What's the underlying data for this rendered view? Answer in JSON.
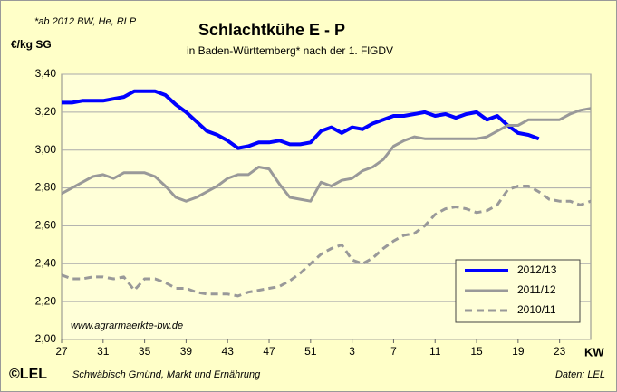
{
  "chart_data": {
    "type": "line",
    "title": "Schlachtkühe E - P",
    "subtitle": "in Baden-Württemberg* nach der 1. FlGDV",
    "note": "*ab 2012 BW, He, RLP",
    "y_label": "€/kg SG",
    "x_label": "KW",
    "watermark": "www.agrarmaerkte-bw.de",
    "logo": "©LEL",
    "footer_left": "Schwäbisch Gmünd, Markt und Ernährung",
    "footer_right": "Daten: LEL",
    "categories": [
      "27",
      null,
      null,
      null,
      "31",
      null,
      null,
      null,
      "35",
      null,
      null,
      null,
      "39",
      null,
      null,
      null,
      "43",
      null,
      null,
      null,
      "47",
      null,
      null,
      null,
      "51",
      null,
      null,
      null,
      "3",
      null,
      null,
      null,
      "7",
      null,
      null,
      null,
      "11",
      null,
      null,
      null,
      "15",
      null,
      null,
      null,
      "19",
      null,
      null,
      null,
      "23",
      null,
      null,
      null
    ],
    "ylim": [
      2.0,
      3.4
    ],
    "yticks": [
      {
        "value": 2.0,
        "label": "2,00"
      },
      {
        "value": 2.2,
        "label": "2,20"
      },
      {
        "value": 2.4,
        "label": "2,40"
      },
      {
        "value": 2.6,
        "label": "2,60"
      },
      {
        "value": 2.8,
        "label": "2,80"
      },
      {
        "value": 3.0,
        "label": "3,00"
      },
      {
        "value": 3.2,
        "label": "3,20"
      },
      {
        "value": 3.4,
        "label": "3,40"
      }
    ],
    "grid": true,
    "legend": "lower right",
    "series": [
      {
        "name": "2012/13",
        "color": "#0000ff",
        "width": 4,
        "dashed": false,
        "values": [
          3.25,
          3.25,
          3.26,
          3.26,
          3.26,
          3.27,
          3.28,
          3.31,
          3.31,
          3.31,
          3.29,
          3.24,
          3.2,
          3.15,
          3.1,
          3.08,
          3.05,
          3.01,
          3.02,
          3.04,
          3.04,
          3.05,
          3.03,
          3.03,
          3.04,
          3.1,
          3.12,
          3.09,
          3.12,
          3.11,
          3.14,
          3.16,
          3.18,
          3.18,
          3.19,
          3.2,
          3.18,
          3.19,
          3.17,
          3.19,
          3.2,
          3.16,
          3.18,
          3.13,
          3.09,
          3.08,
          3.06,
          null,
          null,
          null,
          null,
          null
        ]
      },
      {
        "name": "2011/12",
        "color": "#999999",
        "width": 3,
        "dashed": false,
        "values": [
          2.77,
          2.8,
          2.83,
          2.86,
          2.87,
          2.85,
          2.88,
          2.88,
          2.88,
          2.86,
          2.81,
          2.75,
          2.73,
          2.75,
          2.78,
          2.81,
          2.85,
          2.87,
          2.87,
          2.91,
          2.9,
          2.82,
          2.75,
          2.74,
          2.73,
          2.83,
          2.81,
          2.84,
          2.85,
          2.89,
          2.91,
          2.95,
          3.02,
          3.05,
          3.07,
          3.06,
          3.06,
          3.06,
          3.06,
          3.06,
          3.06,
          3.07,
          3.1,
          3.13,
          3.13,
          3.16,
          3.16,
          3.16,
          3.16,
          3.19,
          3.21,
          3.22
        ]
      },
      {
        "name": "2010/11",
        "color": "#999999",
        "width": 3,
        "dashed": true,
        "values": [
          2.34,
          2.32,
          2.32,
          2.33,
          2.33,
          2.32,
          2.33,
          2.26,
          2.32,
          2.32,
          2.3,
          2.27,
          2.27,
          2.25,
          2.24,
          2.24,
          2.24,
          2.23,
          2.25,
          2.26,
          2.27,
          2.28,
          2.31,
          2.35,
          2.4,
          2.45,
          2.48,
          2.5,
          2.42,
          2.4,
          2.43,
          2.48,
          2.52,
          2.55,
          2.56,
          2.6,
          2.66,
          2.69,
          2.7,
          2.69,
          2.67,
          2.68,
          2.71,
          2.79,
          2.81,
          2.81,
          2.78,
          2.74,
          2.73,
          2.73,
          2.71,
          2.73
        ]
      }
    ]
  }
}
